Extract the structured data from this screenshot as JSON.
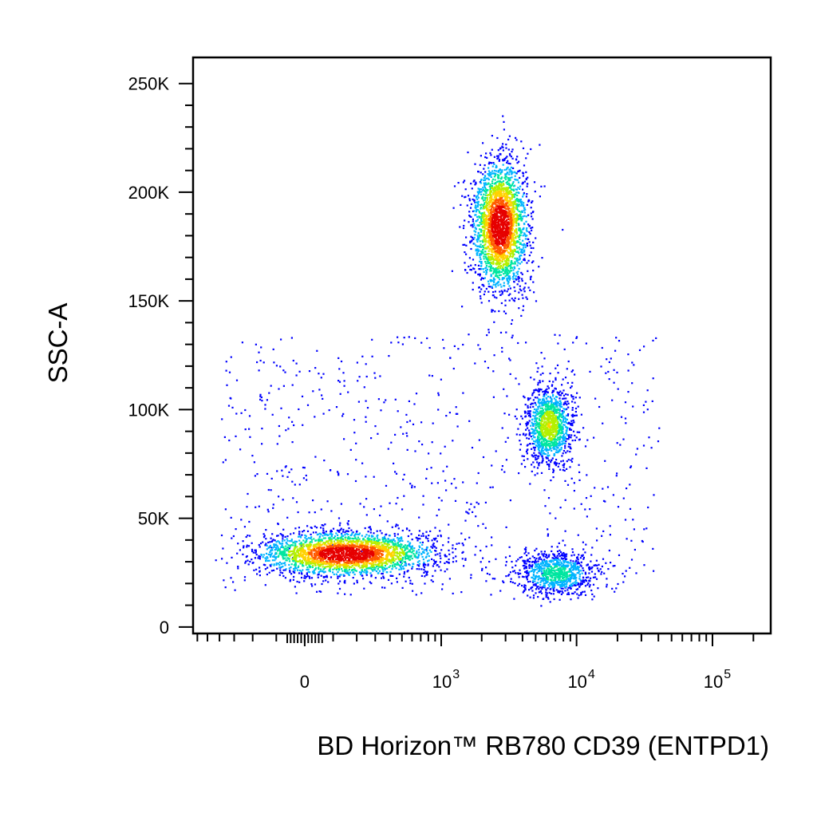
{
  "chart_data": {
    "type": "scatter",
    "title": "",
    "xlabel": "BD Horizon™ RB780 CD39 (ENTPD1)",
    "ylabel": "SSC-A",
    "x_scale": "biexponential",
    "x_ticks": [
      {
        "value": 0,
        "base": "0",
        "exp": ""
      },
      {
        "value": 1000,
        "base": "10",
        "exp": "3"
      },
      {
        "value": 10000,
        "base": "10",
        "exp": "4"
      },
      {
        "value": 100000,
        "base": "10",
        "exp": "5"
      }
    ],
    "y_ticks": [
      {
        "value": 0,
        "label": "0"
      },
      {
        "value": 50000,
        "label": "50K"
      },
      {
        "value": 100000,
        "label": "100K"
      },
      {
        "value": 150000,
        "label": "150K"
      },
      {
        "value": 200000,
        "label": "200K"
      },
      {
        "value": 250000,
        "label": "250K"
      }
    ],
    "ylim": [
      -3000,
      262000
    ],
    "xlim": [
      -1000,
      200000
    ],
    "color_scale": [
      "#0000ff",
      "#00b4ff",
      "#00e6a0",
      "#b4f000",
      "#ffd200",
      "#ff5a00",
      "#e60000"
    ],
    "populations": [
      {
        "name": "",
        "x_center": 150,
        "y_center": 34000,
        "x_spread": 600,
        "y_spread": 9000,
        "density": "high"
      },
      {
        "name": "",
        "x_center": 2700,
        "y_center": 185000,
        "x_spread": 1400,
        "y_spread": 27000,
        "density": "high"
      },
      {
        "name": "",
        "x_center": 6200,
        "y_center": 93000,
        "x_spread": 2600,
        "y_spread": 16000,
        "density": "medium"
      },
      {
        "name": "",
        "x_center": 7000,
        "y_center": 25000,
        "x_spread": 6000,
        "y_spread": 9000,
        "density": "low"
      }
    ]
  }
}
